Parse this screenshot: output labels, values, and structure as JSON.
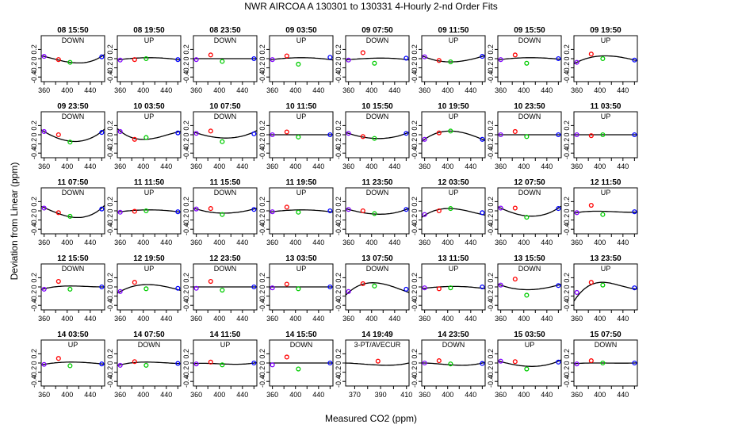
{
  "title": "NWR   AIRCOA A   130301 to 130331   4-Hourly 2-nd Order Fits",
  "xlabel": "Measured CO2 (ppm)",
  "ylabel": "Deviation from Linear (ppm)",
  "colors": {
    "curve": "#000000",
    "p1": "#8000ff",
    "p2": "#ff0000",
    "p3": "#00cc00",
    "p4": "#0000ff"
  },
  "chart_data": {
    "type": "scatter",
    "xlim": [
      355,
      465
    ],
    "ylim": [
      -0.5,
      0.5
    ],
    "xticks": [
      360,
      400,
      440
    ],
    "xtick_labels": [
      "360",
      "400",
      "440"
    ],
    "yticks": [
      -0.4,
      -0.2,
      0,
      0.2
    ],
    "ytick_labels": [
      "-0.4",
      "-0.2",
      "0",
      "0.2"
    ],
    "standard_x": [
      360,
      385,
      405,
      460
    ],
    "panels": [
      {
        "title": "08 15:50",
        "subtitle": "DOWN",
        "curve": [
          0.05,
          -0.03,
          -0.08,
          0.05
        ],
        "points": [
          0.05,
          -0.02,
          -0.08,
          0.04
        ]
      },
      {
        "title": "08 19:50",
        "subtitle": "UP",
        "curve": [
          -0.02,
          0.01,
          0.02,
          -0.02
        ],
        "points": [
          -0.03,
          -0.02,
          0.0,
          -0.02
        ]
      },
      {
        "title": "08 23:50",
        "subtitle": "DOWN",
        "curve": [
          0,
          0,
          0,
          0
        ],
        "points": [
          -0.02,
          0.08,
          -0.06,
          0.0
        ]
      },
      {
        "title": "09 03:50",
        "subtitle": "UP",
        "curve": [
          -0.02,
          0.01,
          0.02,
          -0.02
        ],
        "points": [
          -0.02,
          0.06,
          -0.12,
          0.03
        ]
      },
      {
        "title": "09 07:50",
        "subtitle": "DOWN",
        "curve": [
          -0.02,
          0.0,
          0.01,
          -0.02
        ],
        "points": [
          -0.03,
          0.13,
          -0.1,
          0.01
        ]
      },
      {
        "title": "09 11:50",
        "subtitle": "UP",
        "curve": [
          0.04,
          -0.05,
          -0.07,
          0.05
        ],
        "points": [
          0.04,
          -0.04,
          -0.07,
          0.05
        ]
      },
      {
        "title": "09 15:50",
        "subtitle": "DOWN",
        "curve": [
          -0.02,
          0.01,
          0.02,
          -0.01
        ],
        "points": [
          -0.02,
          0.08,
          -0.1,
          0.0
        ]
      },
      {
        "title": "09 19:50",
        "subtitle": "UP",
        "curve": [
          -0.08,
          0.03,
          0.06,
          -0.03
        ],
        "points": [
          -0.08,
          0.1,
          0.0,
          -0.03
        ]
      },
      {
        "title": "09 23:50",
        "subtitle": "DOWN",
        "curve": [
          0.07,
          -0.08,
          -0.14,
          0.07
        ],
        "points": [
          0.07,
          0.0,
          -0.16,
          0.05
        ]
      },
      {
        "title": "10 03:50",
        "subtitle": "UP",
        "curve": [
          0.08,
          -0.08,
          -0.1,
          0.06
        ],
        "points": [
          0.07,
          -0.1,
          -0.06,
          0.04
        ]
      },
      {
        "title": "10 07:50",
        "subtitle": "DOWN",
        "curve": [
          0.04,
          -0.04,
          -0.07,
          0.06
        ],
        "points": [
          0.03,
          0.08,
          -0.15,
          0.02
        ]
      },
      {
        "title": "10 11:50",
        "subtitle": "UP",
        "curve": [
          0,
          0,
          0,
          0
        ],
        "points": [
          0.0,
          0.06,
          -0.05,
          0.0
        ]
      },
      {
        "title": "10 15:50",
        "subtitle": "DOWN",
        "curve": [
          0.03,
          -0.05,
          -0.08,
          0.03
        ],
        "points": [
          0.03,
          -0.04,
          -0.08,
          0.03
        ]
      },
      {
        "title": "10 19:50",
        "subtitle": "UP",
        "curve": [
          -0.1,
          0.05,
          0.08,
          -0.1
        ],
        "points": [
          -0.1,
          0.04,
          0.08,
          -0.1
        ]
      },
      {
        "title": "10 23:50",
        "subtitle": "DOWN",
        "curve": [
          0,
          0,
          0,
          0
        ],
        "points": [
          0.0,
          0.07,
          -0.04,
          0.0
        ]
      },
      {
        "title": "11 03:50",
        "subtitle": "UP",
        "curve": [
          0,
          0,
          0,
          0
        ],
        "points": [
          0.0,
          -0.02,
          0.0,
          0.0
        ]
      },
      {
        "title": "11 07:50",
        "subtitle": "DOWN",
        "curve": [
          0.07,
          -0.06,
          -0.13,
          0.06
        ],
        "points": [
          0.06,
          -0.04,
          -0.12,
          0.04
        ]
      },
      {
        "title": "11 11:50",
        "subtitle": "UP",
        "curve": [
          -0.02,
          0.01,
          0.02,
          -0.02
        ],
        "points": [
          -0.03,
          -0.01,
          0.0,
          -0.02
        ]
      },
      {
        "title": "11 15:50",
        "subtitle": "DOWN",
        "curve": [
          0.04,
          -0.03,
          -0.05,
          0.04
        ],
        "points": [
          0.04,
          0.05,
          -0.08,
          0.03
        ]
      },
      {
        "title": "11 19:50",
        "subtitle": "UP",
        "curve": [
          -0.02,
          0.01,
          0.02,
          -0.02
        ],
        "points": [
          -0.02,
          0.08,
          -0.03,
          0.0
        ]
      },
      {
        "title": "11 23:50",
        "subtitle": "DOWN",
        "curve": [
          0.03,
          -0.04,
          -0.07,
          0.03
        ],
        "points": [
          0.03,
          0.0,
          -0.06,
          0.03
        ]
      },
      {
        "title": "12 03:50",
        "subtitle": "UP",
        "curve": [
          -0.1,
          0.03,
          0.05,
          -0.08
        ],
        "points": [
          -0.08,
          0.0,
          0.05,
          -0.04
        ]
      },
      {
        "title": "12 07:50",
        "subtitle": "DOWN",
        "curve": [
          0.06,
          -0.06,
          -0.11,
          0.06
        ],
        "points": [
          0.06,
          0.06,
          -0.14,
          0.05
        ]
      },
      {
        "title": "12 11:50",
        "subtitle": "UP",
        "curve": [
          -0.04,
          -0.01,
          -0.01,
          -0.03
        ],
        "points": [
          -0.04,
          0.12,
          -0.08,
          -0.02
        ]
      },
      {
        "title": "12 15:50",
        "subtitle": "DOWN",
        "curve": [
          -0.04,
          0.01,
          0.02,
          0.0
        ],
        "points": [
          -0.05,
          0.12,
          -0.05,
          0.0
        ]
      },
      {
        "title": "12 19:50",
        "subtitle": "UP",
        "curve": [
          -0.1,
          0.02,
          0.05,
          -0.06
        ],
        "points": [
          -0.1,
          0.1,
          -0.04,
          -0.03
        ]
      },
      {
        "title": "12 23:50",
        "subtitle": "DOWN",
        "curve": [
          0,
          0,
          0,
          0
        ],
        "points": [
          -0.03,
          0.12,
          -0.07,
          0.0
        ]
      },
      {
        "title": "13 03:50",
        "subtitle": "UP",
        "curve": [
          0,
          0,
          0,
          0
        ],
        "points": [
          -0.02,
          0.06,
          -0.04,
          0.0
        ]
      },
      {
        "title": "13 07:50",
        "subtitle": "DOWN",
        "curve": [
          -0.12,
          0.06,
          0.09,
          -0.1
        ],
        "points": [
          -0.1,
          0.07,
          0.02,
          -0.05
        ]
      },
      {
        "title": "13 11:50",
        "subtitle": "UP",
        "curve": [
          -0.03,
          0.0,
          0.01,
          -0.03
        ],
        "points": [
          -0.02,
          -0.04,
          -0.02,
          0.0
        ]
      },
      {
        "title": "13 15:50",
        "subtitle": "DOWN",
        "curve": [
          0.04,
          -0.04,
          -0.06,
          0.04
        ],
        "points": [
          0.04,
          0.17,
          -0.18,
          0.03
        ]
      },
      {
        "title": "13 23:50",
        "subtitle": "UP",
        "curve": [
          -0.22,
          0.05,
          0.1,
          -0.04
        ],
        "points": [
          -0.12,
          0.1,
          0.04,
          -0.02
        ]
      },
      {
        "title": "14 03:50",
        "subtitle": "UP",
        "curve": [
          -0.03,
          0.01,
          0.02,
          -0.02
        ],
        "points": [
          -0.03,
          0.1,
          -0.06,
          -0.02
        ]
      },
      {
        "title": "14 07:50",
        "subtitle": "DOWN",
        "curve": [
          -0.04,
          0.01,
          0.02,
          -0.01
        ],
        "points": [
          -0.05,
          0.03,
          -0.05,
          -0.01
        ]
      },
      {
        "title": "14 11:50",
        "subtitle": "UP",
        "curve": [
          -0.01,
          -0.01,
          -0.02,
          0.0
        ],
        "points": [
          -0.02,
          0.02,
          -0.04,
          0.0
        ]
      },
      {
        "title": "14 15:50",
        "subtitle": "DOWN",
        "curve": [
          0,
          0,
          0,
          0
        ],
        "points": [
          -0.04,
          0.13,
          -0.13,
          0.0
        ]
      },
      {
        "title": "14 19:49",
        "subtitle": "3-PT/AVECUR",
        "curve": [
          0,
          -0.02,
          -0.04,
          0
        ],
        "points": [
          null,
          0.04,
          -0.02,
          null
        ]
      },
      {
        "title": "14 23:50",
        "subtitle": "DOWN",
        "curve": [
          0.0,
          -0.02,
          -0.04,
          0.0
        ],
        "points": [
          0.0,
          0.05,
          -0.02,
          -0.01
        ]
      },
      {
        "title": "15 03:50",
        "subtitle": "UP",
        "curve": [
          0.03,
          -0.04,
          -0.07,
          0.04
        ],
        "points": [
          0.04,
          0.03,
          -0.13,
          0.02
        ]
      },
      {
        "title": "15 07:50",
        "subtitle": "DOWN",
        "curve": [
          -0.01,
          0.0,
          0.0,
          0.0
        ],
        "points": [
          -0.02,
          0.05,
          0.0,
          0.0
        ]
      }
    ],
    "special_panel": {
      "index": 36,
      "xlim": [
        363,
        412
      ],
      "xticks": [
        370,
        390,
        410
      ],
      "xtick_labels": [
        "370",
        "390",
        "410"
      ],
      "x": [
        388,
        410
      ]
    }
  }
}
